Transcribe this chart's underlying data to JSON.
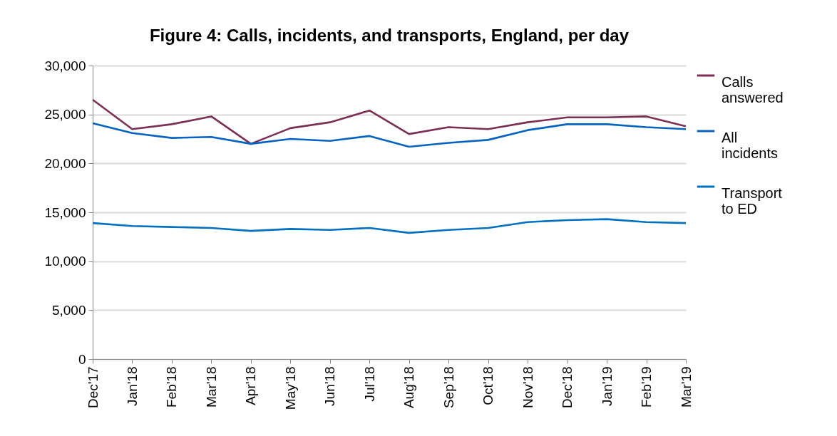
{
  "chart_data": {
    "type": "line",
    "title": "Figure 4: Calls, incidents, and transports, England, per day",
    "categories": [
      "Dec'17",
      "Jan'18",
      "Feb'18",
      "Mar'18",
      "Apr'18",
      "May'18",
      "Jun'18",
      "Jul'18",
      "Aug'18",
      "Sep'18",
      "Oct'18",
      "Nov'18",
      "Dec'18",
      "Jan'19",
      "Feb'19",
      "Mar'19"
    ],
    "series": [
      {
        "name": "Calls answered",
        "color": "#7b2f55",
        "values": [
          26500,
          23500,
          24000,
          24800,
          22000,
          23600,
          24200,
          25400,
          23000,
          23700,
          23500,
          24200,
          24700,
          24700,
          24800,
          23800
        ]
      },
      {
        "name": "All incidents",
        "color": "#0563c1",
        "values": [
          24100,
          23100,
          22600,
          22700,
          22000,
          22500,
          22300,
          22800,
          21700,
          22100,
          22400,
          23400,
          24000,
          24000,
          23700,
          23500
        ]
      },
      {
        "name": "Transport to ED",
        "color": "#0070c0",
        "values": [
          13900,
          13600,
          13500,
          13400,
          13100,
          13300,
          13200,
          13400,
          12900,
          13200,
          13400,
          14000,
          14200,
          14300,
          14000,
          13900
        ]
      }
    ],
    "ylim": [
      0,
      30000
    ],
    "yticks": [
      0,
      {
        "value": 5000,
        "label": "5,000"
      },
      {
        "value": 10000,
        "label": "10,000"
      },
      {
        "value": 15000,
        "label": "15,000"
      },
      {
        "value": 20000,
        "label": "20,000"
      },
      {
        "value": 25000,
        "label": "25,000"
      },
      {
        "value": 30000,
        "label": "30,000"
      }
    ],
    "grid": "y",
    "legend": "right",
    "marker": "none",
    "line_style": "solid"
  }
}
